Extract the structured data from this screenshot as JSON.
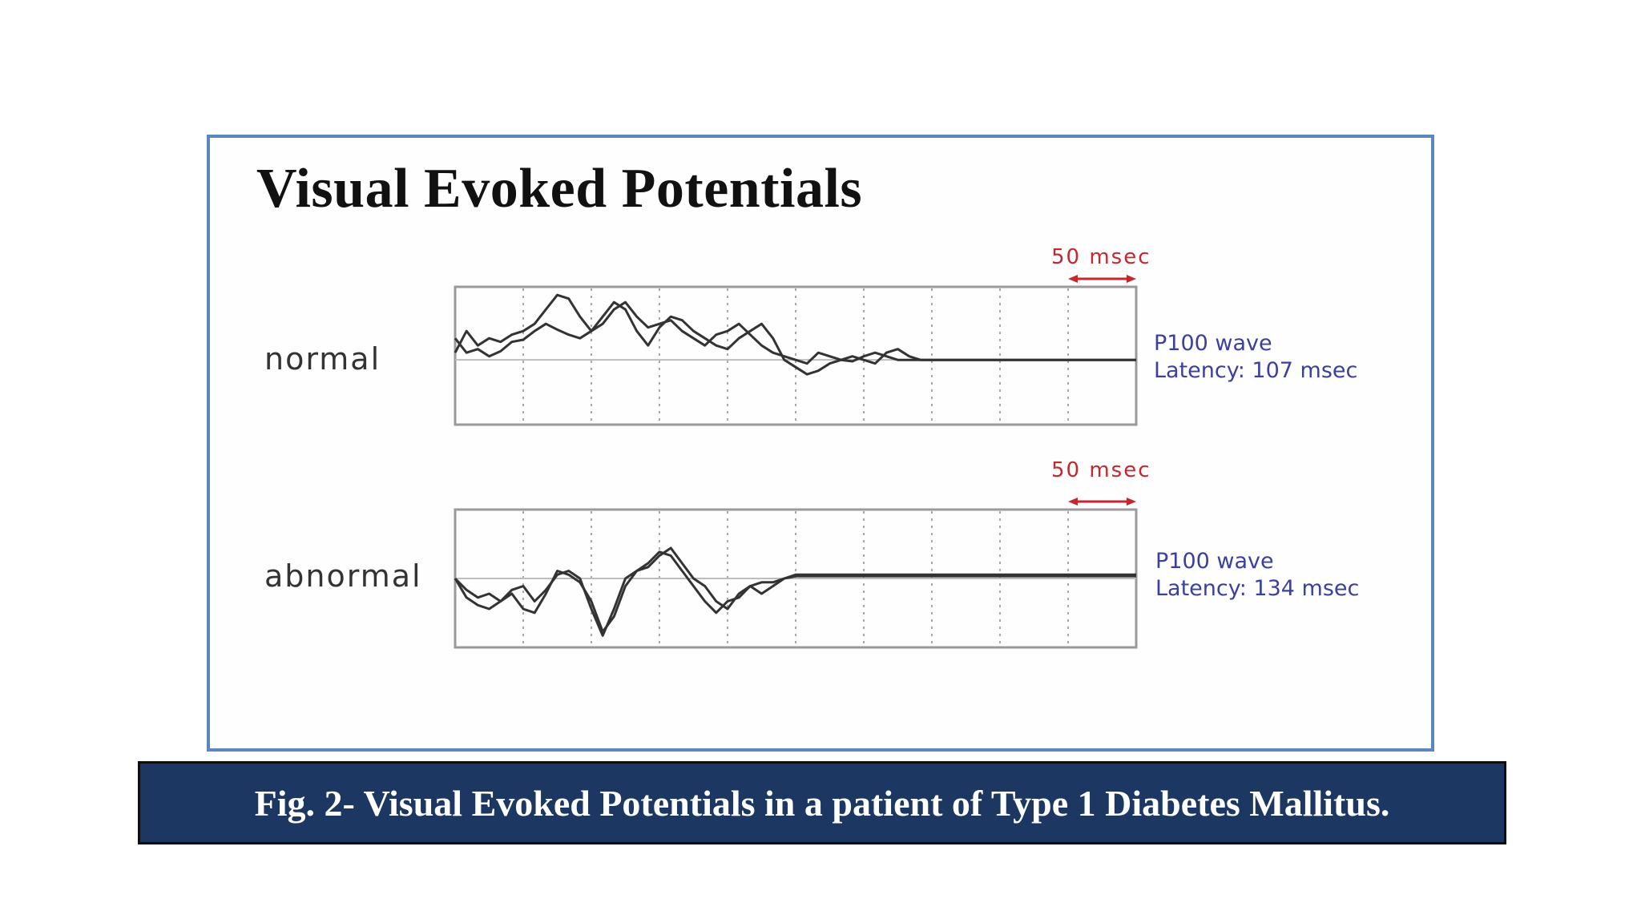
{
  "figure": {
    "title": "Visual Evoked Potentials",
    "caption": "Fig. 2- Visual Evoked Potentials in a patient of Type 1 Diabetes Mallitus.",
    "colors": {
      "frame_border": "#5b86c0",
      "caption_bg": "#1c3761",
      "scale_marker": "#c2282e",
      "annotation_text": "#3a3fa0",
      "trace": "#333333"
    }
  },
  "chart_data": [
    {
      "type": "line",
      "label": "normal",
      "scale_label": "50 msec",
      "annotation": {
        "wave": "P100 wave",
        "latency": "Latency: 107 msec"
      },
      "grid": true,
      "grid_divisions": 10,
      "series": [
        {
          "values": [
            0.3,
            0.1,
            0.15,
            0.05,
            0.12,
            0.25,
            0.28,
            0.4,
            0.5,
            0.42,
            0.35,
            0.3,
            0.4,
            0.6,
            0.8,
            0.7,
            0.4,
            0.2,
            0.45,
            0.6,
            0.55,
            0.4,
            0.3,
            0.2,
            0.15,
            0.3,
            0.4,
            0.5,
            0.3,
            0.0,
            -0.1,
            -0.2,
            -0.15,
            -0.05,
            0.0,
            0.05,
            0.0,
            -0.05,
            0.1,
            0.15,
            0.05,
            0.0,
            0.0,
            0.0,
            0.0,
            0.0,
            0.0,
            0.0,
            0.0,
            0.0,
            0.0,
            0.0,
            0.0,
            0.0,
            0.0,
            0.0,
            0.0,
            0.0,
            0.0,
            0.0,
            0.0
          ]
        },
        {
          "values": [
            0.1,
            0.4,
            0.2,
            0.3,
            0.25,
            0.35,
            0.4,
            0.5,
            0.7,
            0.9,
            0.85,
            0.6,
            0.4,
            0.5,
            0.7,
            0.8,
            0.6,
            0.45,
            0.5,
            0.55,
            0.4,
            0.3,
            0.2,
            0.35,
            0.4,
            0.5,
            0.35,
            0.2,
            0.1,
            0.05,
            0.0,
            -0.05,
            0.1,
            0.05,
            0.0,
            -0.02,
            0.05,
            0.1,
            0.05,
            0.0,
            0.0,
            0.0,
            0.0,
            0.0,
            0.0,
            0.0,
            0.0,
            0.0,
            0.0,
            0.0,
            0.0,
            0.0,
            0.0,
            0.0,
            0.0,
            0.0,
            0.0,
            0.0,
            0.0,
            0.0,
            0.0
          ]
        }
      ]
    },
    {
      "type": "line",
      "label": "abnormal",
      "scale_label": "50 msec",
      "annotation": {
        "wave": "P100 wave",
        "latency": "Latency: 134 msec"
      },
      "grid": true,
      "grid_divisions": 10,
      "series": [
        {
          "values": [
            0.0,
            -0.25,
            -0.35,
            -0.4,
            -0.3,
            -0.2,
            -0.4,
            -0.45,
            -0.2,
            0.1,
            0.05,
            -0.05,
            -0.3,
            -0.7,
            -0.5,
            -0.1,
            0.1,
            0.15,
            0.3,
            0.4,
            0.2,
            0.0,
            -0.1,
            -0.3,
            -0.4,
            -0.2,
            -0.1,
            -0.2,
            -0.1,
            0.0,
            0.05,
            0.05,
            0.05,
            0.05,
            0.05,
            0.05,
            0.05,
            0.05,
            0.05,
            0.05,
            0.05,
            0.05,
            0.05,
            0.05,
            0.05,
            0.05,
            0.05,
            0.05,
            0.05,
            0.05,
            0.05,
            0.05,
            0.05,
            0.05,
            0.05,
            0.05,
            0.05,
            0.05,
            0.05,
            0.05,
            0.05
          ]
        },
        {
          "values": [
            0.0,
            -0.15,
            -0.25,
            -0.2,
            -0.3,
            -0.15,
            -0.1,
            -0.3,
            -0.15,
            0.05,
            0.1,
            0.0,
            -0.4,
            -0.75,
            -0.4,
            0.0,
            0.1,
            0.2,
            0.35,
            0.3,
            0.1,
            -0.1,
            -0.3,
            -0.45,
            -0.3,
            -0.25,
            -0.1,
            -0.05,
            -0.05,
            0.0,
            0.03,
            0.03,
            0.03,
            0.03,
            0.03,
            0.03,
            0.03,
            0.03,
            0.03,
            0.03,
            0.03,
            0.03,
            0.03,
            0.03,
            0.03,
            0.03,
            0.03,
            0.03,
            0.03,
            0.03,
            0.03,
            0.03,
            0.03,
            0.03,
            0.03,
            0.03,
            0.03,
            0.03,
            0.03,
            0.03,
            0.03
          ]
        }
      ]
    }
  ]
}
